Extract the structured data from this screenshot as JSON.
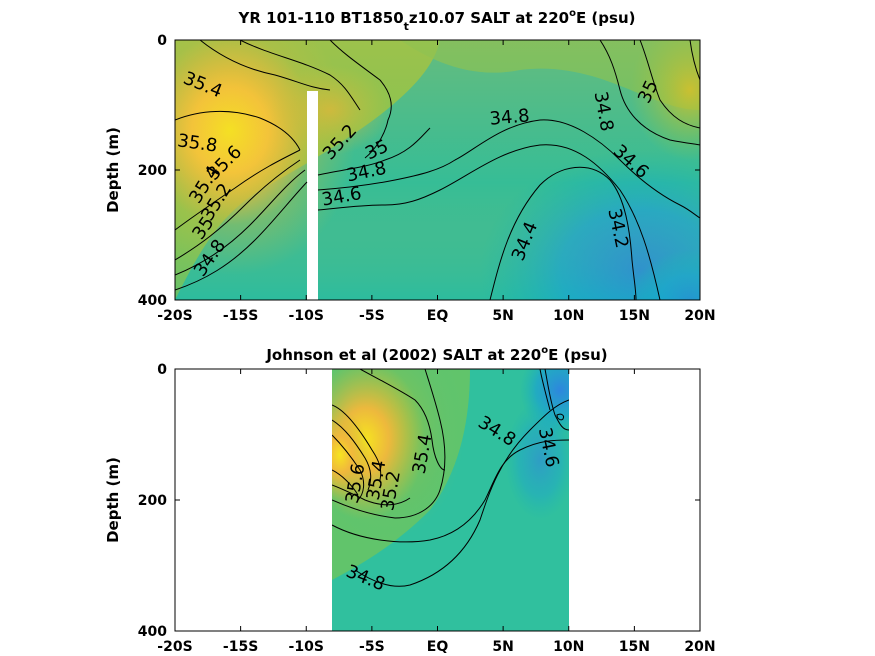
{
  "chart_data": [
    {
      "type": "heatmap",
      "subtype": "filled-contour",
      "title_parts": {
        "main": "YR 101-110 BT1850",
        "sub": "t",
        "tail": "z10.07 SALT at 220",
        "sup": "o",
        "end": "E (psu)"
      },
      "xlabel": "",
      "ylabel": "Depth (m)",
      "xlim": [
        -20,
        20
      ],
      "ylim": [
        400,
        0
      ],
      "y_reversed": true,
      "x_ticks": [
        -20,
        -15,
        -10,
        -5,
        0,
        5,
        10,
        15,
        20
      ],
      "x_tick_labels": [
        "-20S",
        "-15S",
        "-10S",
        "-5S",
        "EQ",
        "5N",
        "10N",
        "15N",
        "20N"
      ],
      "y_ticks": [
        0,
        200,
        400
      ],
      "y_tick_labels": [
        "0",
        "200",
        "400"
      ],
      "colormap": "parula",
      "data_extent_x": [
        -20,
        20
      ],
      "gap_x": [
        -10.3,
        -9.9
      ],
      "gap_depth": [
        80,
        400
      ],
      "contour_labels": [
        {
          "text": "35.4",
          "x": -17.9,
          "depth": 70,
          "angle": 22
        },
        {
          "text": "35.8",
          "x": -18.3,
          "depth": 160,
          "angle": 8
        },
        {
          "text": "35.6",
          "x": -16.2,
          "depth": 190,
          "angle": -45
        },
        {
          "text": "35.4",
          "x": -17.7,
          "depth": 223,
          "angle": -58
        },
        {
          "text": "35.2",
          "x": -16.8,
          "depth": 250,
          "angle": -58
        },
        {
          "text": "35",
          "x": -17.8,
          "depth": 290,
          "angle": -55
        },
        {
          "text": "34.8",
          "x": -17.3,
          "depth": 336,
          "angle": -55
        },
        {
          "text": "35.2",
          "x": -7.4,
          "depth": 158,
          "angle": -48
        },
        {
          "text": "35",
          "x": -4.6,
          "depth": 170,
          "angle": -25
        },
        {
          "text": "34.8",
          "x": -5.4,
          "depth": 204,
          "angle": -12
        },
        {
          "text": "34.6",
          "x": -7.3,
          "depth": 242,
          "angle": -10
        },
        {
          "text": "34.8",
          "x": 5.5,
          "depth": 120,
          "angle": -5
        },
        {
          "text": "34.8",
          "x": 12.6,
          "depth": 110,
          "angle": 80
        },
        {
          "text": "35",
          "x": 16.1,
          "depth": 80,
          "angle": -65
        },
        {
          "text": "34.6",
          "x": 14.7,
          "depth": 188,
          "angle": 42
        },
        {
          "text": "34.4",
          "x": 6.7,
          "depth": 310,
          "angle": -68
        },
        {
          "text": "34.2",
          "x": 13.7,
          "depth": 290,
          "angle": 78
        }
      ]
    },
    {
      "type": "heatmap",
      "subtype": "filled-contour",
      "title_parts": {
        "main": "Johnson et al (2002) SALT at 220",
        "sub": "",
        "tail": "",
        "sup": "o",
        "end": "E (psu)"
      },
      "xlabel": "",
      "ylabel": "Depth (m)",
      "xlim": [
        -20,
        20
      ],
      "ylim": [
        400,
        0
      ],
      "y_reversed": true,
      "x_ticks": [
        -20,
        -15,
        -10,
        -5,
        0,
        5,
        10,
        15,
        20
      ],
      "x_tick_labels": [
        "-20S",
        "-15S",
        "-10S",
        "-5S",
        "EQ",
        "5N",
        "10N",
        "15N",
        "20N"
      ],
      "y_ticks": [
        0,
        200,
        400
      ],
      "y_tick_labels": [
        "0",
        "200",
        "400"
      ],
      "colormap": "parula",
      "data_extent_x": [
        -8,
        10
      ],
      "contour_labels": [
        {
          "text": "35.6",
          "x": -6.2,
          "depth": 175,
          "angle": -80
        },
        {
          "text": "35.4",
          "x": -4.6,
          "depth": 170,
          "angle": -80
        },
        {
          "text": "35.2",
          "x": -3.5,
          "depth": 186,
          "angle": -80
        },
        {
          "text": "35.4",
          "x": -1.1,
          "depth": 130,
          "angle": -80
        },
        {
          "text": "34.8",
          "x": 4.5,
          "depth": 96,
          "angle": 32
        },
        {
          "text": "34.6",
          "x": 8.4,
          "depth": 120,
          "angle": 78
        },
        {
          "text": "34.8",
          "x": -5.5,
          "depth": 320,
          "angle": 22
        }
      ]
    }
  ]
}
